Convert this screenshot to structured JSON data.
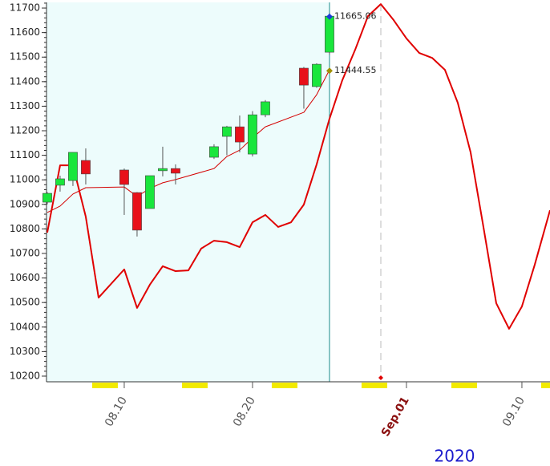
{
  "chart_data": {
    "type": "candlestick",
    "x_label": "2020",
    "xlim": [
      3.94,
      43.19
    ],
    "ylim": [
      10177,
      11723
    ],
    "yticks": [
      10200,
      10300,
      10400,
      10500,
      10600,
      10700,
      10800,
      10900,
      11000,
      11100,
      11200,
      11300,
      11400,
      11500,
      11600,
      11700
    ],
    "xticks": [
      {
        "value": 10,
        "label": "08.10",
        "color": "#555555"
      },
      {
        "value": 20,
        "label": "08.20",
        "color": "#555555"
      },
      {
        "value": 32,
        "label": "Sep.01",
        "color": "#8b1010"
      },
      {
        "value": 41,
        "label": "09.10",
        "color": "#555555"
      }
    ],
    "up_color": "#19e63c",
    "down_color": "#e8101a",
    "candles": {
      "x": [
        4,
        5,
        6,
        7,
        10,
        11,
        12,
        13,
        14,
        17,
        18,
        19,
        20,
        21,
        24,
        25,
        26
      ],
      "open": [
        10909,
        10978,
        10997,
        11079,
        11040,
        10948,
        10883,
        11037,
        11046,
        11092,
        11177,
        11216,
        11105,
        11265,
        11455,
        11380,
        11520
      ],
      "high": [
        10950,
        11017,
        11112,
        11128,
        11046,
        10950,
        11017,
        11135,
        11063,
        11145,
        11220,
        11262,
        11280,
        11325,
        11460,
        11475,
        11680
      ],
      "low": [
        10900,
        10952,
        10975,
        10981,
        10857,
        10769,
        10883,
        11014,
        10981,
        11085,
        11100,
        11112,
        11095,
        11255,
        11290,
        11375,
        11510
      ],
      "close": [
        10945,
        11004,
        11112,
        11024,
        10981,
        10795,
        11017,
        11046,
        11027,
        11135,
        11216,
        11154,
        11265,
        11318,
        11386,
        11471,
        11667
      ]
    },
    "lines": [
      {
        "color": "#d40000",
        "width": 1,
        "x": [
          4,
          5,
          6,
          7,
          10,
          11,
          12,
          13,
          14,
          17,
          18,
          19,
          20,
          21,
          24,
          25,
          26
        ],
        "values": [
          10867,
          10893,
          10942,
          10968,
          10971,
          10932,
          10965,
          10988,
          11001,
          11046,
          11095,
          11121,
          11171,
          11216,
          11275,
          11347,
          11448
        ]
      },
      {
        "color": "#e00000",
        "width": 2,
        "x": [
          4,
          5,
          6,
          7,
          8,
          10,
          11,
          12,
          13,
          14,
          15,
          16,
          17,
          18,
          19,
          20,
          21,
          22,
          23,
          24,
          25,
          26,
          27,
          28,
          29,
          30,
          31,
          32,
          33,
          34,
          35,
          36,
          37,
          38,
          39,
          40,
          41,
          42,
          43.19
        ],
        "values": [
          10785,
          11059,
          11059,
          10850,
          10520,
          10635,
          10478,
          10573,
          10648,
          10628,
          10631,
          10720,
          10752,
          10746,
          10726,
          10827,
          10857,
          10808,
          10827,
          10899,
          11063,
          11249,
          11406,
          11530,
          11667,
          11716,
          11651,
          11576,
          11517,
          11497,
          11448,
          11314,
          11112,
          10808,
          10497,
          10393,
          10484,
          10654,
          10876
        ]
      }
    ],
    "markers": [
      {
        "x": 26,
        "y": 11665.06,
        "color": "#1a3fd8"
      },
      {
        "x": 26,
        "y": 11444.55,
        "color": "#a09000"
      }
    ]
  }
}
